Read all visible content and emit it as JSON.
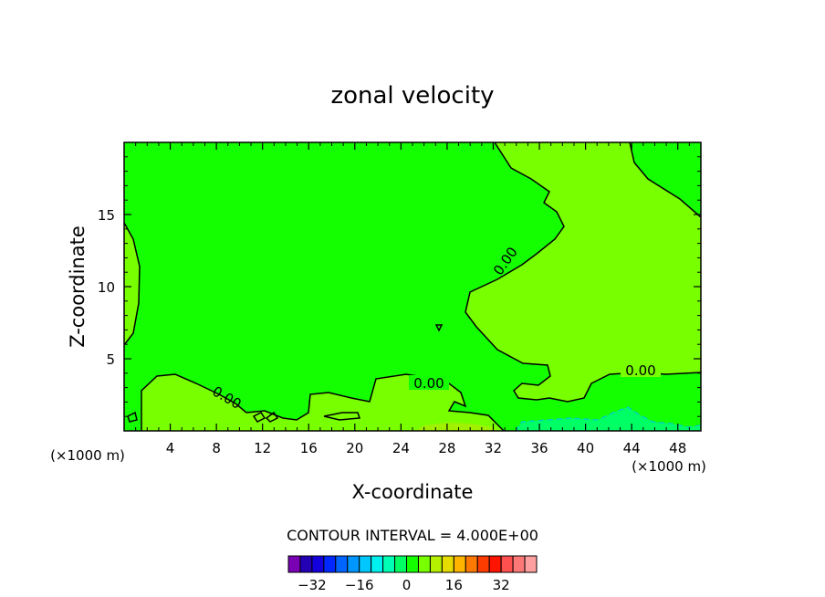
{
  "chart_data": {
    "type": "contour",
    "title": "zonal velocity",
    "xlabel": "X-coordinate",
    "ylabel": "Z-coordinate",
    "x_unit_label": "(×1000 m)",
    "x_unit_label_right": "(×1000 m)",
    "xlim": [
      0,
      50
    ],
    "ylim": [
      0,
      20
    ],
    "x_ticks": [
      4,
      8,
      12,
      16,
      20,
      24,
      28,
      32,
      36,
      40,
      44,
      48
    ],
    "y_ticks": [
      5,
      10,
      15
    ],
    "contour_interval_text": "CONTOUR INTERVAL = 4.000E+00",
    "contour_labels": [
      "0.00",
      "0.00",
      "0.00",
      "0.00"
    ],
    "colorbar": {
      "tick_values": [
        -32,
        -16,
        0,
        16,
        32
      ],
      "tick_labels": [
        "−32",
        "−16",
        "0",
        "16",
        "32"
      ],
      "colors": [
        "#7a00b4",
        "#2400b4",
        "#1400dc",
        "#0028ff",
        "#0064ff",
        "#0096ff",
        "#00c8ff",
        "#00f0f0",
        "#00ffb4",
        "#00ff64",
        "#14ff00",
        "#78ff00",
        "#b4f000",
        "#e6dc00",
        "#ffb400",
        "#ff7800",
        "#ff3c00",
        "#ff1400",
        "#ff5050",
        "#ff7878",
        "#ffa0a0"
      ]
    },
    "field_colors": {
      "near_zero": "#14ff00",
      "slightly_negative": "#00ff64",
      "slightly_positive": "#78ff00"
    }
  }
}
